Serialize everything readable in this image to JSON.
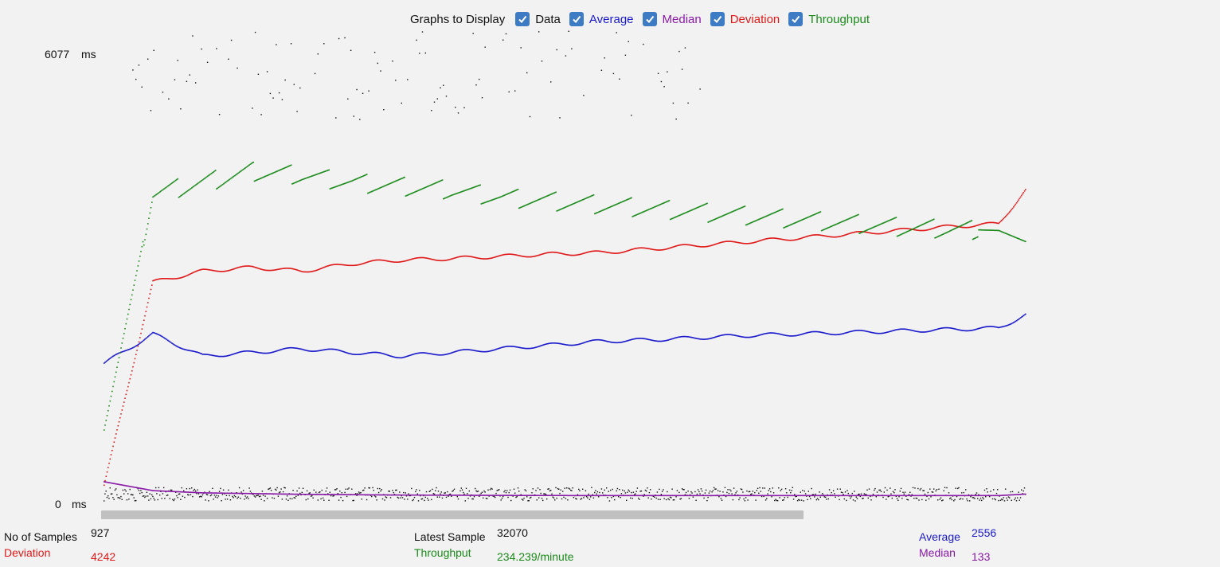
{
  "legend": {
    "title": "Graphs to Display",
    "items": [
      {
        "key": "data",
        "label": "Data",
        "color": "#111111",
        "checked": true
      },
      {
        "key": "average",
        "label": "Average",
        "color": "#1a1acc",
        "checked": true
      },
      {
        "key": "median",
        "label": "Median",
        "color": "#8a1aa8",
        "checked": true
      },
      {
        "key": "deviation",
        "label": "Deviation",
        "color": "#e01a1a",
        "checked": true
      },
      {
        "key": "throughput",
        "label": "Throughput",
        "color": "#1a8a1a",
        "checked": true
      }
    ]
  },
  "axis": {
    "max_value": "6077",
    "max_unit": "ms",
    "min_value": "0",
    "min_unit": "ms"
  },
  "stats": {
    "samples_label": "No of Samples",
    "samples_value": "927",
    "latest_label": "Latest Sample",
    "latest_value": "32070",
    "average_label": "Average",
    "average_value": "2556",
    "deviation_label": "Deviation",
    "deviation_value": "4242",
    "throughput_label": "Throughput",
    "throughput_value": "234.239/minute",
    "median_label": "Median",
    "median_value": "133"
  },
  "colors": {
    "data": "#111111",
    "average": "#1a1acc",
    "median": "#8a1aa8",
    "deviation": "#e01a1a",
    "throughput": "#1a8a1a"
  },
  "chart_data": {
    "type": "scatter",
    "ylim": [
      0,
      6077
    ],
    "yunit": "ms",
    "x": [
      1,
      50,
      100,
      150,
      200,
      250,
      300,
      350,
      400,
      450,
      500,
      550,
      600,
      650,
      700,
      750,
      800,
      850,
      900,
      927
    ],
    "series": [
      {
        "name": "Average",
        "values": [
          1900,
          2300,
          2000,
          2050,
          2100,
          2050,
          2000,
          2050,
          2100,
          2150,
          2200,
          2220,
          2250,
          2280,
          2300,
          2320,
          2340,
          2360,
          2380,
          2556
        ]
      },
      {
        "name": "Median",
        "values": [
          300,
          180,
          150,
          140,
          130,
          125,
          120,
          118,
          115,
          114,
          113,
          113,
          113,
          113,
          113,
          113,
          113,
          113,
          113,
          133
        ]
      },
      {
        "name": "Deviation",
        "values": [
          250,
          3000,
          3150,
          3200,
          3150,
          3250,
          3300,
          3320,
          3350,
          3380,
          3400,
          3450,
          3500,
          3550,
          3600,
          3650,
          3700,
          3750,
          3790,
          4242
        ]
      },
      {
        "name": "Throughput",
        "values": [
          1000,
          4200,
          4350,
          4500,
          4450,
          4350,
          4300,
          4250,
          4150,
          4100,
          4050,
          4000,
          3950,
          3900,
          3850,
          3800,
          3750,
          3720,
          3700,
          3550
        ]
      }
    ]
  }
}
